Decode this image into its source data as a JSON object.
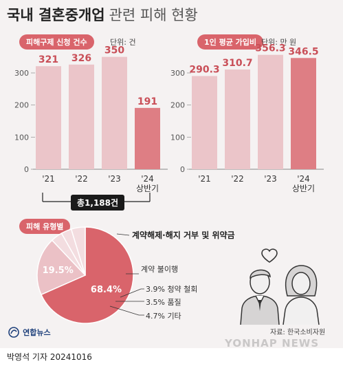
{
  "header": {
    "title_bold": "국내 결혼중개업",
    "title_light": "관련 피해 현황"
  },
  "colors": {
    "bar": "#ebc5c9",
    "bar_highlight": "#de7e84",
    "value_label": "#c94f58",
    "pill": "#d9646b",
    "donut_main": "#d9646b",
    "donut_second": "#ebc1c6",
    "donut_small": "#f3dde0",
    "text": "#222222"
  },
  "chart_data": [
    {
      "type": "bar",
      "title": "피해구제 신청 건수",
      "unit": "단위: 건",
      "categories": [
        "'21",
        "'22",
        "'23",
        "'24\n상반기"
      ],
      "values": [
        321,
        326,
        350,
        191
      ],
      "yticks": [
        0,
        100,
        200,
        300
      ],
      "ylim": [
        0,
        360
      ],
      "highlight_index": 3,
      "total_label": "총1,188건"
    },
    {
      "type": "bar",
      "title": "1인 평균 가입비",
      "unit": "단위: 만 원",
      "categories": [
        "'21",
        "'22",
        "'23",
        "'24\n상반기"
      ],
      "values": [
        290.3,
        310.7,
        356.3,
        346.5
      ],
      "yticks": [
        0,
        100,
        200,
        300
      ],
      "ylim": [
        0,
        360
      ],
      "highlight_index": 3
    },
    {
      "type": "pie",
      "title": "피해 유형별",
      "slices": [
        {
          "label": "계약해제·해지 거부 및 위약금",
          "value": 68.4,
          "value_label": "68.4%"
        },
        {
          "label": "계약 불이행",
          "value": 19.5,
          "value_label": "19.5%"
        },
        {
          "label": "3.9% 청약 철회",
          "value": 3.9
        },
        {
          "label": "3.5% 품질",
          "value": 3.5
        },
        {
          "label": "4.7% 기타",
          "value": 4.7
        }
      ]
    }
  ],
  "footer": {
    "source": "자료: 한국소비자원",
    "credit": "박영석 기자  20241016",
    "logo": "연합뉴스",
    "watermark": "YONHAP NEWS"
  },
  "icons": {
    "couple": "couple-illustration",
    "heart": "heart-icon",
    "logo": "yonhap-logo-icon"
  }
}
